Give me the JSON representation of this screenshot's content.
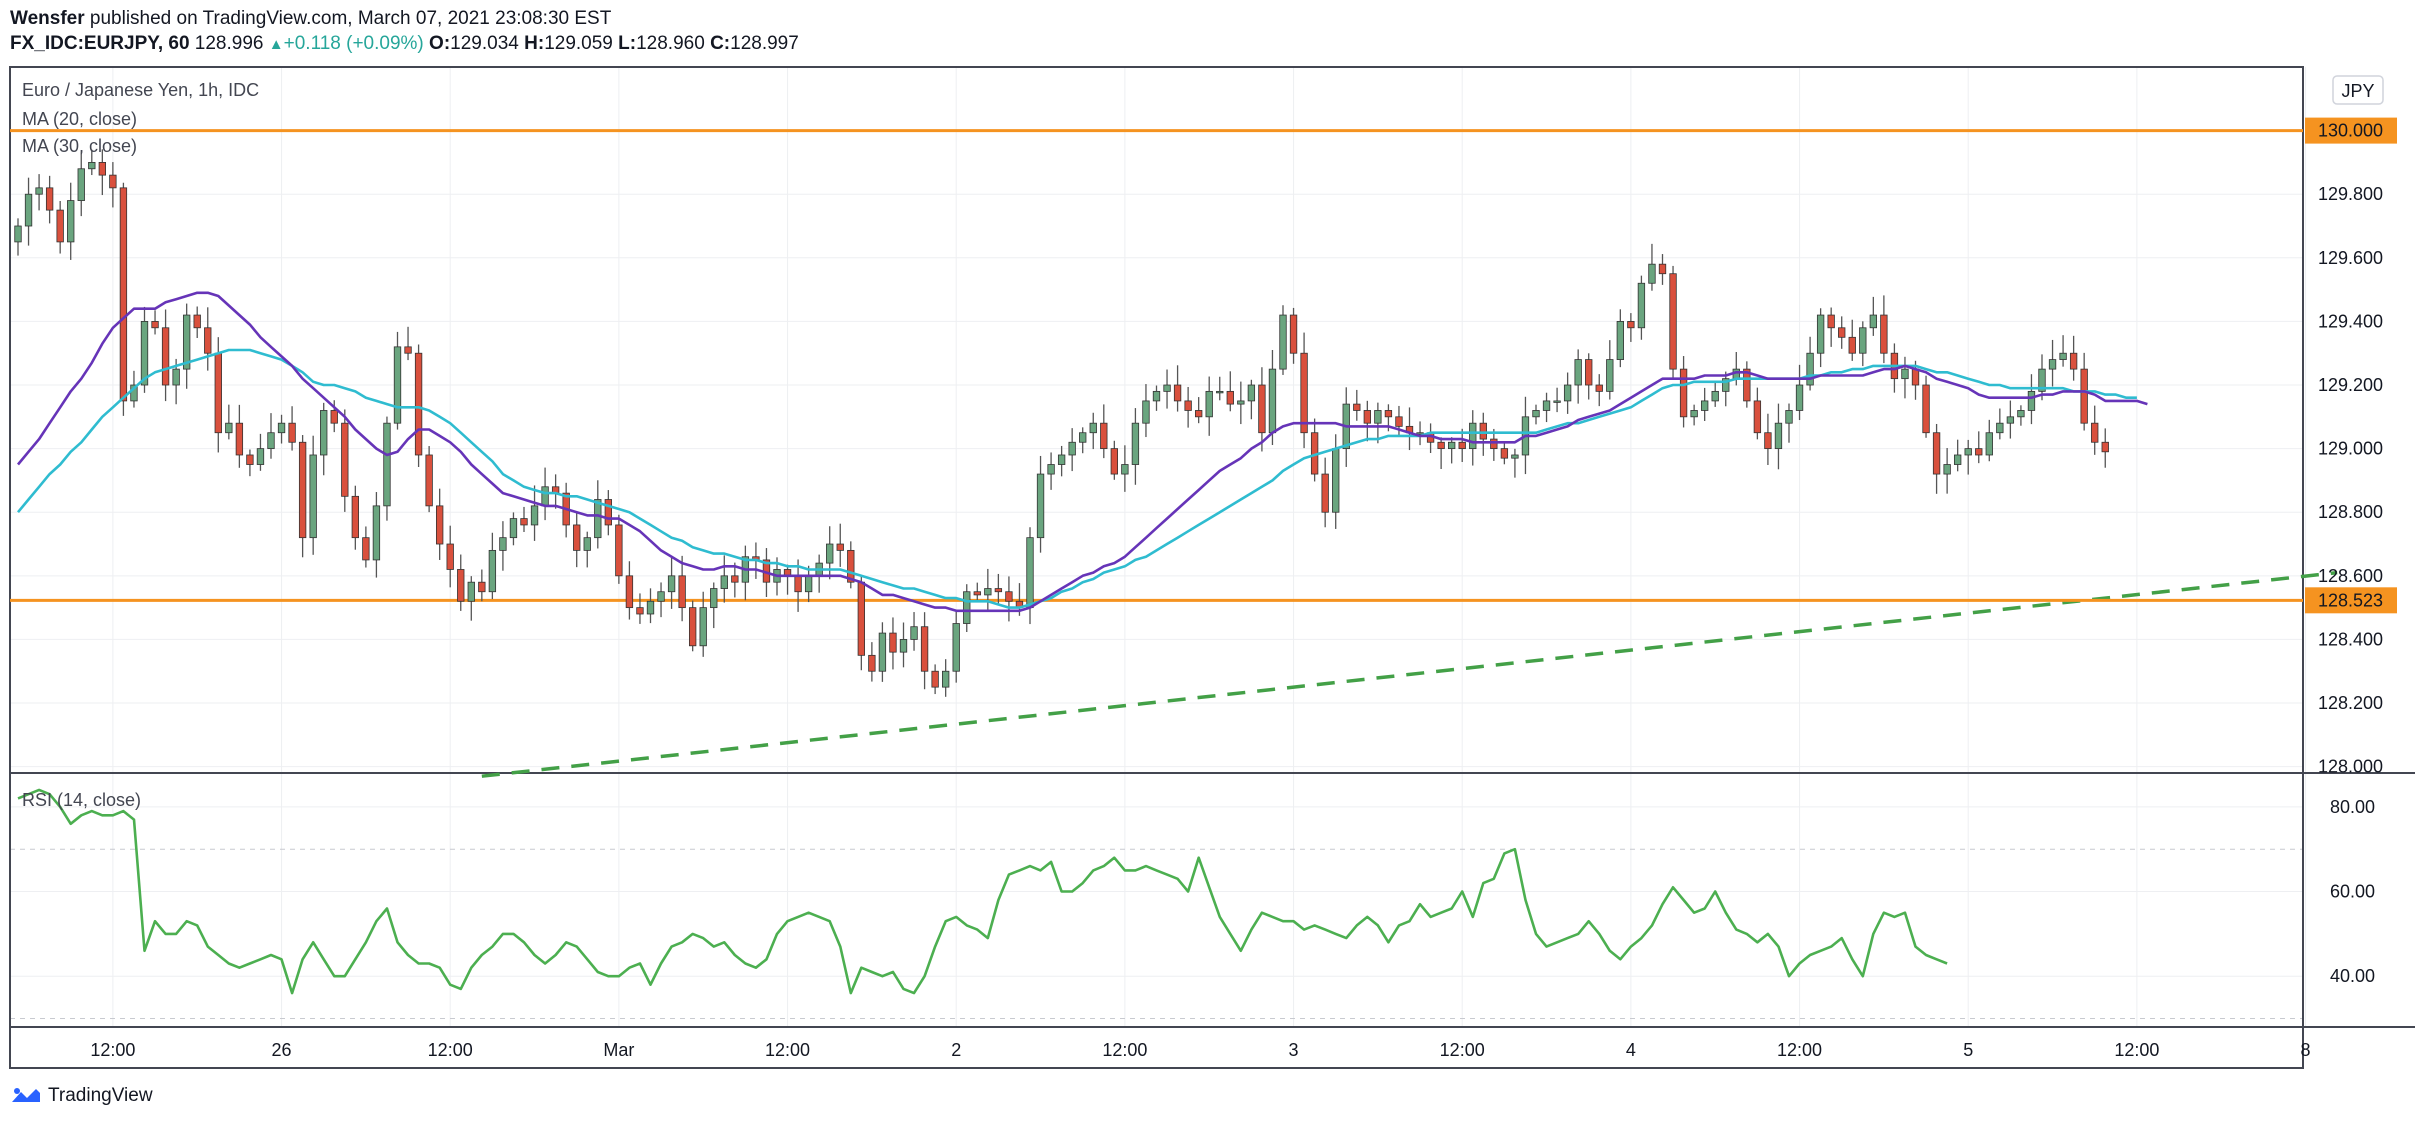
{
  "header": {
    "author": "Wensfer",
    "published_text": "published on TradingView.com, March 07, 2021 23:08:30 EST",
    "symbol": "FX_IDC:EURJPY, 60",
    "last": "128.996",
    "change": "+0.118 (+0.09%)",
    "o_label": "O:",
    "o_value": "129.034",
    "h_label": "H:",
    "h_value": "129.059",
    "l_label": "L:",
    "l_value": "128.960",
    "c_label": "C:",
    "c_value": "128.997"
  },
  "legend": {
    "series_title": "Euro / Japanese Yen, 1h, IDC",
    "ma20": "MA (20, close)",
    "ma30": "MA (30, close)",
    "rsi": "RSI (14, close)"
  },
  "currency_badge": "JPY",
  "footer": {
    "brand": "TradingView"
  },
  "colors": {
    "up": "#6aa57f",
    "down": "#d9503d",
    "wick": "#555555",
    "ma20": "#6634b8",
    "ma30": "#2fbcd0",
    "rsi": "#4caf50",
    "hline": "#f59320",
    "trend": "#43a047"
  },
  "chart_data": [
    {
      "type": "candlestick",
      "yticks": [
        128.0,
        128.2,
        128.4,
        128.6,
        128.8,
        129.0,
        129.2,
        129.4,
        129.6,
        129.8
      ],
      "ylim": [
        127.98,
        130.2
      ],
      "xlim": [
        0,
        216
      ],
      "xticks": [
        {
          "i": 9,
          "label": "12:00"
        },
        {
          "i": 25,
          "label": "26"
        },
        {
          "i": 41,
          "label": "12:00"
        },
        {
          "i": 57,
          "label": "Mar"
        },
        {
          "i": 73,
          "label": "12:00"
        },
        {
          "i": 89,
          "label": "2"
        },
        {
          "i": 105,
          "label": "12:00"
        },
        {
          "i": 121,
          "label": "3"
        },
        {
          "i": 137,
          "label": "12:00"
        },
        {
          "i": 153,
          "label": "4"
        },
        {
          "i": 169,
          "label": "12:00"
        },
        {
          "i": 185,
          "label": "5"
        },
        {
          "i": 201,
          "label": "12:00"
        },
        {
          "i": 217,
          "label": "8"
        }
      ],
      "horizontal_levels": [
        {
          "value": 130.0,
          "label": "130.000"
        },
        {
          "value": 128.523,
          "label": "128.523"
        }
      ],
      "trendline": [
        {
          "i": 44,
          "v": 127.97
        },
        {
          "i": 220,
          "v": 128.61
        }
      ],
      "closes": [
        129.7,
        129.8,
        129.82,
        129.75,
        129.65,
        129.78,
        129.88,
        129.9,
        129.86,
        129.82,
        129.15,
        129.2,
        129.4,
        129.38,
        129.2,
        129.25,
        129.42,
        129.38,
        129.3,
        129.05,
        129.08,
        128.98,
        128.95,
        129.0,
        129.05,
        129.08,
        129.02,
        128.72,
        128.98,
        129.12,
        129.08,
        128.85,
        128.72,
        128.65,
        128.82,
        129.08,
        129.32,
        129.3,
        128.98,
        128.82,
        128.7,
        128.62,
        128.52,
        128.58,
        128.55,
        128.68,
        128.72,
        128.78,
        128.76,
        128.82,
        128.88,
        128.86,
        128.76,
        128.68,
        128.72,
        128.84,
        128.76,
        128.6,
        128.5,
        128.48,
        128.52,
        128.55,
        128.6,
        128.5,
        128.38,
        128.5,
        128.56,
        128.6,
        128.58,
        128.66,
        128.65,
        128.58,
        128.62,
        128.6,
        128.55,
        128.6,
        128.64,
        128.7,
        128.68,
        128.58,
        128.35,
        128.3,
        128.42,
        128.36,
        128.4,
        128.44,
        128.3,
        128.25,
        128.3,
        128.45,
        128.55,
        128.54,
        128.56,
        128.55,
        128.52,
        128.5,
        128.72,
        128.92,
        128.95,
        128.98,
        129.02,
        129.05,
        129.08,
        129.0,
        128.92,
        128.95,
        129.08,
        129.15,
        129.18,
        129.2,
        129.15,
        129.12,
        129.1,
        129.18,
        129.18,
        129.14,
        129.15,
        129.2,
        129.05,
        129.25,
        129.42,
        129.3,
        129.05,
        128.92,
        128.8,
        129.0,
        129.14,
        129.12,
        129.08,
        129.12,
        129.1,
        129.07,
        129.05,
        129.05,
        129.02,
        129.0,
        129.02,
        129.0,
        129.08,
        129.03,
        129.0,
        128.97,
        128.98,
        129.1,
        129.12,
        129.15,
        129.15,
        129.2,
        129.28,
        129.2,
        129.18,
        129.28,
        129.4,
        129.38,
        129.52,
        129.58,
        129.55,
        129.25,
        129.1,
        129.12,
        129.15,
        129.18,
        129.22,
        129.25,
        129.15,
        129.05,
        129.0,
        129.08,
        129.12,
        129.2,
        129.3,
        129.42,
        129.38,
        129.35,
        129.3,
        129.38,
        129.42,
        129.3,
        129.22,
        129.25,
        129.2,
        129.05,
        128.92,
        128.95,
        128.98,
        129.0,
        128.98,
        129.05,
        129.08,
        129.1,
        129.12,
        129.18,
        129.25,
        129.28,
        129.3,
        129.25,
        129.08,
        129.02,
        128.99
      ],
      "ma20": [
        128.95,
        128.99,
        129.03,
        129.08,
        129.13,
        129.18,
        129.22,
        129.27,
        129.33,
        129.38,
        129.41,
        129.44,
        129.44,
        129.44,
        129.46,
        129.47,
        129.48,
        129.49,
        129.49,
        129.48,
        129.45,
        129.42,
        129.39,
        129.35,
        129.32,
        129.29,
        129.26,
        129.22,
        129.19,
        129.16,
        129.13,
        129.1,
        129.06,
        129.03,
        129.0,
        128.98,
        128.99,
        129.03,
        129.06,
        129.06,
        129.04,
        129.02,
        128.99,
        128.95,
        128.92,
        128.89,
        128.86,
        128.85,
        128.84,
        128.83,
        128.82,
        128.82,
        128.81,
        128.8,
        128.79,
        128.79,
        128.78,
        128.78,
        128.76,
        128.74,
        128.71,
        128.68,
        128.66,
        128.64,
        128.63,
        128.62,
        128.62,
        128.63,
        128.63,
        128.62,
        128.62,
        128.61,
        128.6,
        128.6,
        128.6,
        128.6,
        128.6,
        128.6,
        128.6,
        128.59,
        128.58,
        128.56,
        128.54,
        128.54,
        128.53,
        128.52,
        128.51,
        128.5,
        128.5,
        128.49,
        128.49,
        128.49,
        128.49,
        128.49,
        128.49,
        128.49,
        128.5,
        128.52,
        128.54,
        128.56,
        128.58,
        128.6,
        128.61,
        128.63,
        128.64,
        128.66,
        128.69,
        128.72,
        128.75,
        128.78,
        128.81,
        128.84,
        128.87,
        128.9,
        128.93,
        128.95,
        128.97,
        129.0,
        129.02,
        129.05,
        129.07,
        129.08,
        129.08,
        129.08,
        129.08,
        129.08,
        129.07,
        129.07,
        129.07,
        129.07,
        129.07,
        129.06,
        129.05,
        129.04,
        129.04,
        129.03,
        129.03,
        129.03,
        129.02,
        129.02,
        129.02,
        129.02,
        129.02,
        129.04,
        129.04,
        129.05,
        129.06,
        129.07,
        129.09,
        129.1,
        129.11,
        129.12,
        129.14,
        129.16,
        129.18,
        129.2,
        129.22,
        129.22,
        129.22,
        129.22,
        129.23,
        129.23,
        129.23,
        129.24,
        129.24,
        129.23,
        129.22,
        129.22,
        129.22,
        129.22,
        129.22,
        129.23,
        129.23,
        129.23,
        129.23,
        129.23,
        129.24,
        129.25,
        129.25,
        129.26,
        129.25,
        129.24,
        129.22,
        129.21,
        129.2,
        129.19,
        129.17,
        129.16,
        129.16,
        129.16,
        129.16,
        129.16,
        129.17,
        129.17,
        129.18,
        129.18,
        129.18,
        129.17,
        129.15,
        129.15,
        129.15,
        129.15,
        129.14
      ],
      "ma30": [
        128.8,
        128.84,
        128.88,
        128.92,
        128.95,
        128.99,
        129.02,
        129.06,
        129.1,
        129.13,
        129.16,
        129.19,
        129.22,
        129.24,
        129.25,
        129.26,
        129.27,
        129.28,
        129.29,
        129.3,
        129.31,
        129.31,
        129.31,
        129.3,
        129.29,
        129.28,
        129.26,
        129.24,
        129.21,
        129.2,
        129.2,
        129.19,
        129.18,
        129.16,
        129.15,
        129.14,
        129.13,
        129.13,
        129.13,
        129.12,
        129.1,
        129.08,
        129.05,
        129.02,
        128.99,
        128.96,
        128.92,
        128.9,
        128.88,
        128.87,
        128.86,
        128.86,
        128.85,
        128.85,
        128.84,
        128.83,
        128.82,
        128.81,
        128.8,
        128.78,
        128.76,
        128.74,
        128.72,
        128.71,
        128.69,
        128.68,
        128.67,
        128.67,
        128.66,
        128.65,
        128.65,
        128.64,
        128.64,
        128.63,
        128.63,
        128.62,
        128.62,
        128.62,
        128.62,
        128.61,
        128.6,
        128.59,
        128.58,
        128.57,
        128.56,
        128.56,
        128.55,
        128.54,
        128.53,
        128.53,
        128.52,
        128.52,
        128.52,
        128.51,
        128.5,
        128.5,
        128.51,
        128.52,
        128.53,
        128.55,
        128.56,
        128.58,
        128.59,
        128.61,
        128.62,
        128.63,
        128.65,
        128.66,
        128.68,
        128.7,
        128.72,
        128.74,
        128.76,
        128.78,
        128.8,
        128.82,
        128.84,
        128.86,
        128.88,
        128.9,
        128.93,
        128.95,
        128.97,
        128.98,
        128.99,
        129.0,
        129.01,
        129.02,
        129.03,
        129.03,
        129.04,
        129.04,
        129.04,
        129.04,
        129.05,
        129.05,
        129.05,
        129.05,
        129.05,
        129.05,
        129.05,
        129.05,
        129.05,
        129.05,
        129.05,
        129.06,
        129.07,
        129.08,
        129.08,
        129.09,
        129.1,
        129.11,
        129.12,
        129.13,
        129.15,
        129.17,
        129.19,
        129.2,
        129.2,
        129.21,
        129.21,
        129.21,
        129.21,
        129.22,
        129.22,
        129.22,
        129.22,
        129.22,
        129.22,
        129.22,
        129.23,
        129.23,
        129.24,
        129.24,
        129.25,
        129.25,
        129.26,
        129.26,
        129.26,
        129.26,
        129.26,
        129.25,
        129.24,
        129.24,
        129.23,
        129.22,
        129.21,
        129.2,
        129.2,
        129.19,
        129.19,
        129.19,
        129.19,
        129.19,
        129.19,
        129.18,
        129.18,
        129.18,
        129.17,
        129.17,
        129.16,
        129.16
      ]
    },
    {
      "type": "line",
      "yticks": [
        40,
        60,
        80
      ],
      "ylim": [
        28,
        88
      ],
      "dashed_levels": [
        30,
        70
      ],
      "values": [
        82,
        83,
        84,
        83,
        80,
        76,
        78,
        79,
        78,
        78,
        79,
        77,
        46,
        53,
        50,
        50,
        53,
        52,
        47,
        45,
        43,
        42,
        43,
        44,
        45,
        44,
        36,
        44,
        48,
        44,
        40,
        40,
        44,
        48,
        53,
        56,
        48,
        45,
        43,
        43,
        42,
        38,
        37,
        42,
        45,
        47,
        50,
        50,
        48,
        45,
        43,
        45,
        48,
        47,
        44,
        41,
        40,
        40,
        42,
        43,
        38,
        43,
        47,
        48,
        50,
        49,
        47,
        48,
        45,
        43,
        42,
        44,
        50,
        53,
        54,
        55,
        54,
        53,
        47,
        36,
        42,
        41,
        40,
        41,
        37,
        36,
        40,
        47,
        53,
        54,
        52,
        51,
        49,
        58,
        64,
        65,
        66,
        65,
        67,
        60,
        60,
        62,
        65,
        66,
        68,
        65,
        65,
        66,
        65,
        64,
        63,
        60,
        68,
        61,
        54,
        50,
        46,
        51,
        55,
        54,
        53,
        53,
        51,
        52,
        51,
        50,
        49,
        52,
        54,
        52,
        48,
        52,
        53,
        57,
        54,
        55,
        56,
        60,
        54,
        62,
        63,
        69,
        70,
        58,
        50,
        47,
        48,
        49,
        50,
        53,
        50,
        46,
        44,
        47,
        49,
        52,
        57,
        61,
        58,
        55,
        56,
        60,
        55,
        51,
        50,
        48,
        50,
        47,
        40,
        43,
        45,
        46,
        47,
        49,
        44,
        40,
        50,
        55,
        54,
        55,
        47,
        45,
        44,
        43
      ]
    }
  ]
}
